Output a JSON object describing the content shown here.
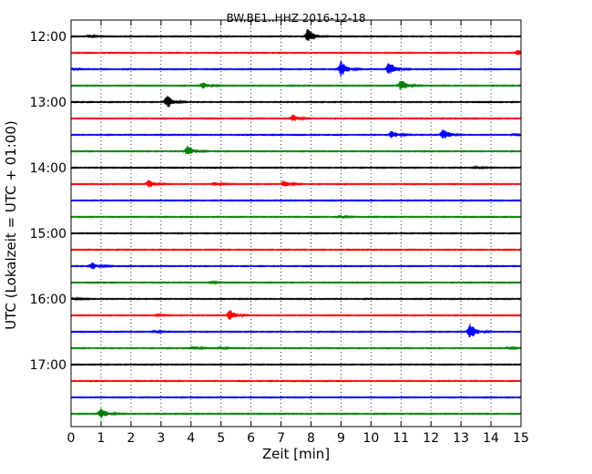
{
  "chart_data": {
    "type": "line",
    "title": "BW.BE1..HHZ 2016-12-18",
    "xlabel": "Zeit  [min]",
    "ylabel": "UTC (Lokalzeit = UTC + 01:00)",
    "xlim": [
      0,
      15
    ],
    "x_ticks": [
      "0",
      "1",
      "2",
      "3",
      "4",
      "5",
      "6",
      "7",
      "8",
      "9",
      "10",
      "11",
      "12",
      "13",
      "14",
      "15"
    ],
    "y_ticks": [
      "12:00",
      "13:00",
      "14:00",
      "15:00",
      "16:00",
      "17:00"
    ],
    "grid": "vertical-dotted",
    "colors": [
      "#000000",
      "#ff0000",
      "#0000ff",
      "#008000"
    ],
    "series": [
      {
        "start": "12:00",
        "color": "#000000",
        "events": [
          {
            "x": 0.6,
            "amp": 0.18
          },
          {
            "x": 7.9,
            "amp": 1.0
          }
        ]
      },
      {
        "start": "12:15",
        "color": "#ff0000",
        "events": [
          {
            "x": 14.9,
            "amp": 0.35
          }
        ]
      },
      {
        "start": "12:30",
        "color": "#0000ff",
        "events": [
          {
            "x": 0.1,
            "amp": 0.15
          },
          {
            "x": 9.0,
            "amp": 1.0
          },
          {
            "x": 10.6,
            "amp": 1.0
          }
        ]
      },
      {
        "start": "12:45",
        "color": "#008000",
        "events": [
          {
            "x": 4.4,
            "amp": 0.4
          },
          {
            "x": 11.0,
            "amp": 0.85
          }
        ]
      },
      {
        "start": "13:00",
        "color": "#000000",
        "events": [
          {
            "x": 3.2,
            "amp": 0.85
          }
        ]
      },
      {
        "start": "13:15",
        "color": "#ff0000",
        "events": [
          {
            "x": 7.4,
            "amp": 0.45
          }
        ]
      },
      {
        "start": "13:30",
        "color": "#0000ff",
        "events": [
          {
            "x": 10.7,
            "amp": 0.5
          },
          {
            "x": 12.4,
            "amp": 0.9
          },
          {
            "x": 14.8,
            "amp": 0.2
          }
        ]
      },
      {
        "start": "13:45",
        "color": "#008000",
        "events": [
          {
            "x": 3.9,
            "amp": 0.75
          }
        ]
      },
      {
        "start": "14:00",
        "color": "#000000",
        "events": [
          {
            "x": 13.5,
            "amp": 0.15
          }
        ]
      },
      {
        "start": "14:15",
        "color": "#ff0000",
        "events": [
          {
            "x": 2.6,
            "amp": 0.5
          },
          {
            "x": 4.8,
            "amp": 0.2
          },
          {
            "x": 7.1,
            "amp": 0.4
          }
        ]
      },
      {
        "start": "14:30",
        "color": "#0000ff",
        "events": []
      },
      {
        "start": "14:45",
        "color": "#008000",
        "events": [
          {
            "x": 9.0,
            "amp": 0.15
          }
        ]
      },
      {
        "start": "15:00",
        "color": "#000000",
        "events": []
      },
      {
        "start": "15:15",
        "color": "#ff0000",
        "events": []
      },
      {
        "start": "15:30",
        "color": "#0000ff",
        "events": [
          {
            "x": 0.7,
            "amp": 0.45
          }
        ]
      },
      {
        "start": "15:45",
        "color": "#008000",
        "events": [
          {
            "x": 4.7,
            "amp": 0.1
          }
        ]
      },
      {
        "start": "16:00",
        "color": "#000000",
        "events": [
          {
            "x": 0.1,
            "amp": 0.15
          }
        ]
      },
      {
        "start": "16:15",
        "color": "#ff0000",
        "events": [
          {
            "x": 2.9,
            "amp": 0.12
          },
          {
            "x": 5.3,
            "amp": 0.7
          }
        ]
      },
      {
        "start": "16:30",
        "color": "#0000ff",
        "events": [
          {
            "x": 2.8,
            "amp": 0.15
          },
          {
            "x": 13.3,
            "amp": 1.0
          }
        ]
      },
      {
        "start": "16:45",
        "color": "#008000",
        "events": [
          {
            "x": 4.1,
            "amp": 0.25
          },
          {
            "x": 5.0,
            "amp": 0.15
          },
          {
            "x": 14.6,
            "amp": 0.12
          }
        ]
      },
      {
        "start": "17:00",
        "color": "#000000",
        "events": []
      },
      {
        "start": "17:15",
        "color": "#ff0000",
        "events": []
      },
      {
        "start": "17:30",
        "color": "#0000ff",
        "events": []
      },
      {
        "start": "17:45",
        "color": "#008000",
        "events": [
          {
            "x": 1.0,
            "amp": 0.7
          }
        ]
      }
    ]
  }
}
